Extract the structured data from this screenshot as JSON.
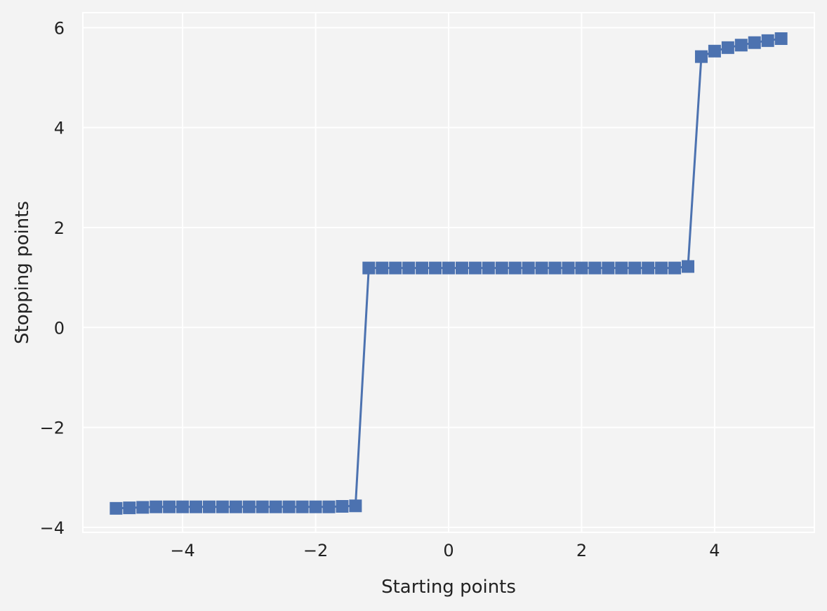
{
  "chart_data": {
    "type": "line",
    "xlabel": "Starting points",
    "ylabel": "Stopping points",
    "xlim": [
      -5.5,
      5.5
    ],
    "ylim": [
      -4.1,
      6.3
    ],
    "xticks": [
      -4,
      -2,
      0,
      2,
      4
    ],
    "yticks": [
      -4,
      -2,
      0,
      2,
      4,
      6
    ],
    "xtick_labels": [
      "−4",
      "−2",
      "0",
      "2",
      "4"
    ],
    "ytick_labels": [
      "−4",
      "−2",
      "0",
      "2",
      "4",
      "6"
    ],
    "grid": true,
    "marker": "square",
    "series": [
      {
        "x": [
          -5.0,
          -4.8,
          -4.6,
          -4.4,
          -4.2,
          -4.0,
          -3.8,
          -3.6,
          -3.4,
          -3.2,
          -3.0,
          -2.8,
          -2.6,
          -2.4,
          -2.2,
          -2.0,
          -1.8,
          -1.6,
          -1.4,
          -1.2,
          -1.0,
          -0.8,
          -0.6,
          -0.4,
          -0.2,
          0.0,
          0.2,
          0.4,
          0.6,
          0.8,
          1.0,
          1.2,
          1.4,
          1.6,
          1.8,
          2.0,
          2.2,
          2.4,
          2.6,
          2.8,
          3.0,
          3.2,
          3.4,
          3.6,
          3.8,
          4.0,
          4.2,
          4.4,
          4.6,
          4.8,
          5.0
        ],
        "y": [
          -3.62,
          -3.61,
          -3.6,
          -3.59,
          -3.59,
          -3.59,
          -3.59,
          -3.59,
          -3.59,
          -3.59,
          -3.59,
          -3.59,
          -3.59,
          -3.59,
          -3.59,
          -3.59,
          -3.59,
          -3.58,
          -3.57,
          1.19,
          1.19,
          1.19,
          1.19,
          1.19,
          1.19,
          1.19,
          1.19,
          1.19,
          1.19,
          1.19,
          1.19,
          1.19,
          1.19,
          1.19,
          1.19,
          1.19,
          1.19,
          1.19,
          1.19,
          1.19,
          1.19,
          1.19,
          1.19,
          1.22,
          5.42,
          5.53,
          5.6,
          5.65,
          5.7,
          5.74,
          5.78
        ]
      }
    ]
  },
  "style": {
    "background": "#f3f3f3",
    "grid_color": "#ffffff",
    "series_color": "#4c72b0",
    "text_color": "#222222"
  }
}
